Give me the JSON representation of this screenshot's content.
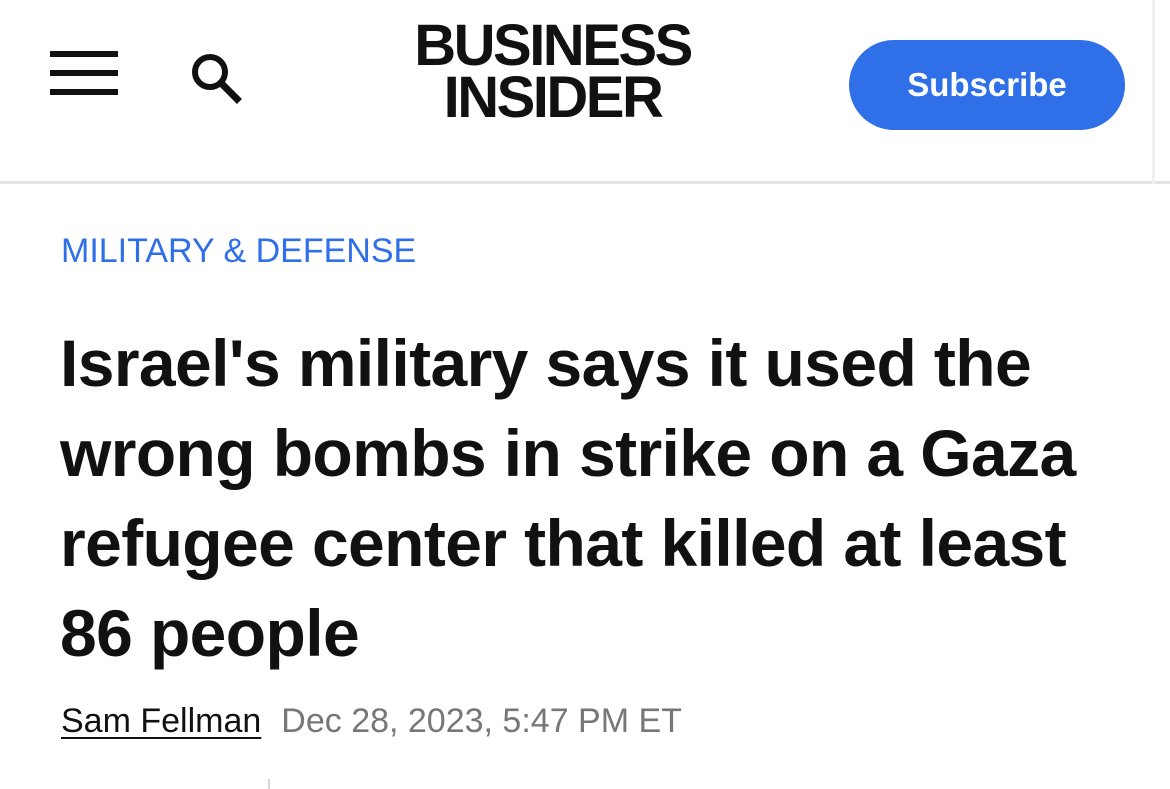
{
  "header": {
    "menu_icon": "hamburger-menu-icon",
    "search_icon": "search-icon",
    "logo_line1": "BUSINESS",
    "logo_line2": "INSIDER",
    "subscribe_label": "Subscribe"
  },
  "article": {
    "category": "MILITARY & DEFENSE",
    "title": "Israel's military says it used the wrong bombs in strike on a Gaza refugee center that killed at least 86 people",
    "author": "Sam Fellman",
    "date": "Dec 28, 2023, 5:47 PM ET"
  },
  "colors": {
    "accent": "#2f6fe8",
    "text": "#111111",
    "muted": "#777777",
    "divider": "#e2e2e2"
  }
}
